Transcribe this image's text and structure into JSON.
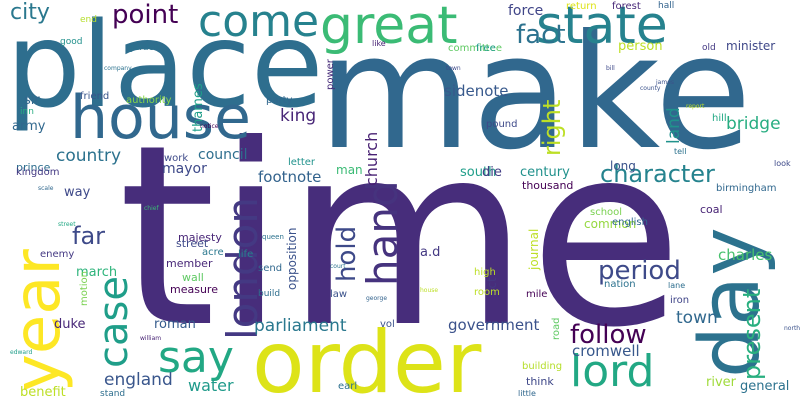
{
  "words": [
    {
      "text": "time",
      "color": "#472d7b"
    },
    {
      "text": "make",
      "color": "#31688e"
    },
    {
      "text": "place",
      "color": "#2e6e8e"
    },
    {
      "text": "order",
      "color": "#dde318"
    },
    {
      "text": "year",
      "color": "#fde725"
    },
    {
      "text": "day",
      "color": "#2c728e"
    },
    {
      "text": "house",
      "color": "#31688e"
    },
    {
      "text": "great",
      "color": "#3bbb75"
    },
    {
      "text": "state",
      "color": "#26828e"
    },
    {
      "text": "come",
      "color": "#26828e"
    },
    {
      "text": "lord",
      "color": "#22a884"
    },
    {
      "text": "say",
      "color": "#22a884"
    },
    {
      "text": "london",
      "color": "#443983"
    },
    {
      "text": "hand",
      "color": "#46337e"
    },
    {
      "text": "case",
      "color": "#1f9e89"
    },
    {
      "text": "point",
      "color": "#440154"
    },
    {
      "text": "fact",
      "color": "#2c728e"
    },
    {
      "text": "follow",
      "color": "#440154"
    },
    {
      "text": "period",
      "color": "#3e4a89"
    },
    {
      "text": "character",
      "color": "#25838e"
    },
    {
      "text": "present",
      "color": "#29af7f"
    },
    {
      "text": "right",
      "color": "#bddf26"
    },
    {
      "text": "city",
      "color": "#2a788e"
    },
    {
      "text": "far",
      "color": "#3e4a89"
    },
    {
      "text": "hold",
      "color": "#3e4a89"
    },
    {
      "text": "parliament",
      "color": "#2a788e"
    },
    {
      "text": "king",
      "color": "#482677"
    },
    {
      "text": "country",
      "color": "#2c728e"
    },
    {
      "text": "church",
      "color": "#482173"
    },
    {
      "text": "land",
      "color": "#20928c"
    },
    {
      "text": "bridge",
      "color": "#27ad81"
    },
    {
      "text": "town",
      "color": "#31688e"
    },
    {
      "text": "footnote",
      "color": "#33638d"
    },
    {
      "text": "england",
      "color": "#39568c"
    },
    {
      "text": "water",
      "color": "#1f9a8a"
    },
    {
      "text": "cromwell",
      "color": "#38588c"
    },
    {
      "text": "government",
      "color": "#3b528b"
    },
    {
      "text": "sidenote",
      "color": "#38598c"
    },
    {
      "text": "charles",
      "color": "#48c16e"
    },
    {
      "text": "council",
      "color": "#2e6e8e"
    },
    {
      "text": "mayor",
      "color": "#3e4989"
    },
    {
      "text": "force",
      "color": "#404588"
    },
    {
      "text": "person",
      "color": "#bddf26"
    },
    {
      "text": "minister",
      "color": "#3f4889"
    },
    {
      "text": "journal",
      "color": "#bddf26"
    },
    {
      "text": "century",
      "color": "#21918c"
    },
    {
      "text": "south",
      "color": "#1f9e89"
    },
    {
      "text": "die",
      "color": "#433e85"
    },
    {
      "text": "sir",
      "color": "#31688e"
    },
    {
      "text": "army",
      "color": "#31688e"
    },
    {
      "text": "march",
      "color": "#2fb47c"
    },
    {
      "text": "duke",
      "color": "#482878"
    },
    {
      "text": "roman",
      "color": "#365c8d"
    },
    {
      "text": "benefit",
      "color": "#bddf26"
    },
    {
      "text": "river",
      "color": "#9fda3a"
    },
    {
      "text": "general",
      "color": "#2c728e"
    },
    {
      "text": "thames",
      "color": "#1f9e89"
    },
    {
      "text": "common",
      "color": "#95d840"
    },
    {
      "text": "way",
      "color": "#3e4989"
    },
    {
      "text": "a.d",
      "color": "#443983"
    },
    {
      "text": "act",
      "color": "#453882"
    },
    {
      "text": "opposition",
      "color": "#3b528b"
    },
    {
      "text": "majesty",
      "color": "#482677"
    },
    {
      "text": "street",
      "color": "#3e4989"
    },
    {
      "text": "member",
      "color": "#482878"
    },
    {
      "text": "wall",
      "color": "#5ec962"
    },
    {
      "text": "measure",
      "color": "#440154"
    },
    {
      "text": "think",
      "color": "#3f4889"
    },
    {
      "text": "thousand",
      "color": "#440154"
    },
    {
      "text": "long",
      "color": "#3b528b"
    },
    {
      "text": "prince",
      "color": "#2e6e8e"
    },
    {
      "text": "kingdom",
      "color": "#443983"
    },
    {
      "text": "work",
      "color": "#3e4a89"
    },
    {
      "text": "letter",
      "color": "#20928c"
    },
    {
      "text": "man",
      "color": "#3bbb75"
    },
    {
      "text": "coal",
      "color": "#482475"
    },
    {
      "text": "english",
      "color": "#31688e"
    },
    {
      "text": "school",
      "color": "#7ad151"
    },
    {
      "text": "birmingham",
      "color": "#31688e"
    },
    {
      "text": "nation",
      "color": "#2c728e"
    },
    {
      "text": "iron",
      "color": "#404588"
    },
    {
      "text": "mile",
      "color": "#440154"
    },
    {
      "text": "vol",
      "color": "#3b528b"
    },
    {
      "text": "earl",
      "color": "#2d708e"
    },
    {
      "text": "law",
      "color": "#3b528b"
    },
    {
      "text": "high",
      "color": "#bddf26"
    },
    {
      "text": "room",
      "color": "#bddf26"
    },
    {
      "text": "road",
      "color": "#5ec962"
    },
    {
      "text": "building",
      "color": "#b5de2b"
    },
    {
      "text": "motion",
      "color": "#7ad151"
    },
    {
      "text": "enemy",
      "color": "#443983"
    },
    {
      "text": "send",
      "color": "#31688e"
    },
    {
      "text": "life",
      "color": "#26828e"
    },
    {
      "text": "acre",
      "color": "#2a788e"
    },
    {
      "text": "build",
      "color": "#2e6e8e"
    },
    {
      "text": "authority",
      "color": "#86d549"
    },
    {
      "text": "friend",
      "color": "#39568c"
    },
    {
      "text": "party",
      "color": "#31688e"
    },
    {
      "text": "power",
      "color": "#472c7a"
    },
    {
      "text": "committee",
      "color": "#5ec962"
    },
    {
      "text": "free",
      "color": "#1f9e89"
    },
    {
      "text": "return",
      "color": "#dde318"
    },
    {
      "text": "forest",
      "color": "#482878"
    },
    {
      "text": "hall",
      "color": "#33638d"
    },
    {
      "text": "old",
      "color": "#443983"
    },
    {
      "text": "hill",
      "color": "#22a884"
    },
    {
      "text": "pound",
      "color": "#3e4a89"
    },
    {
      "text": "good",
      "color": "#21918c"
    },
    {
      "text": "end",
      "color": "#b5de2b"
    },
    {
      "text": "garden",
      "color": "#2c728e"
    },
    {
      "text": "inn",
      "color": "#27ad81"
    },
    {
      "text": "like",
      "color": "#482475"
    },
    {
      "text": "stand",
      "color": "#2e6e8e"
    },
    {
      "text": "little",
      "color": "#31688e"
    },
    {
      "text": "lane",
      "color": "#2e6e8e"
    },
    {
      "text": "tell",
      "color": "#2c728e"
    },
    {
      "text": "look",
      "color": "#3e4a89"
    },
    {
      "text": "queen",
      "color": "#2c728e"
    },
    {
      "text": "company",
      "color": "#2c728e"
    },
    {
      "text": "james",
      "color": "#3b528b"
    },
    {
      "text": "bill",
      "color": "#3e4a89"
    },
    {
      "text": "george",
      "color": "#33638d"
    },
    {
      "text": "william",
      "color": "#482475"
    },
    {
      "text": "house",
      "color": "#bddf26"
    },
    {
      "text": "edward",
      "color": "#1f9e89"
    },
    {
      "text": "north",
      "color": "#3b528b"
    },
    {
      "text": "scale",
      "color": "#31688e"
    },
    {
      "text": "town",
      "color": "#3e4989"
    },
    {
      "text": "notice",
      "color": "#440154"
    },
    {
      "text": "report",
      "color": "#bddf26"
    },
    {
      "text": "county",
      "color": "#3b528b"
    },
    {
      "text": "chief",
      "color": "#3bbb75"
    },
    {
      "text": "street",
      "color": "#22a884"
    },
    {
      "text": "court",
      "color": "#2c728e"
    }
  ]
}
